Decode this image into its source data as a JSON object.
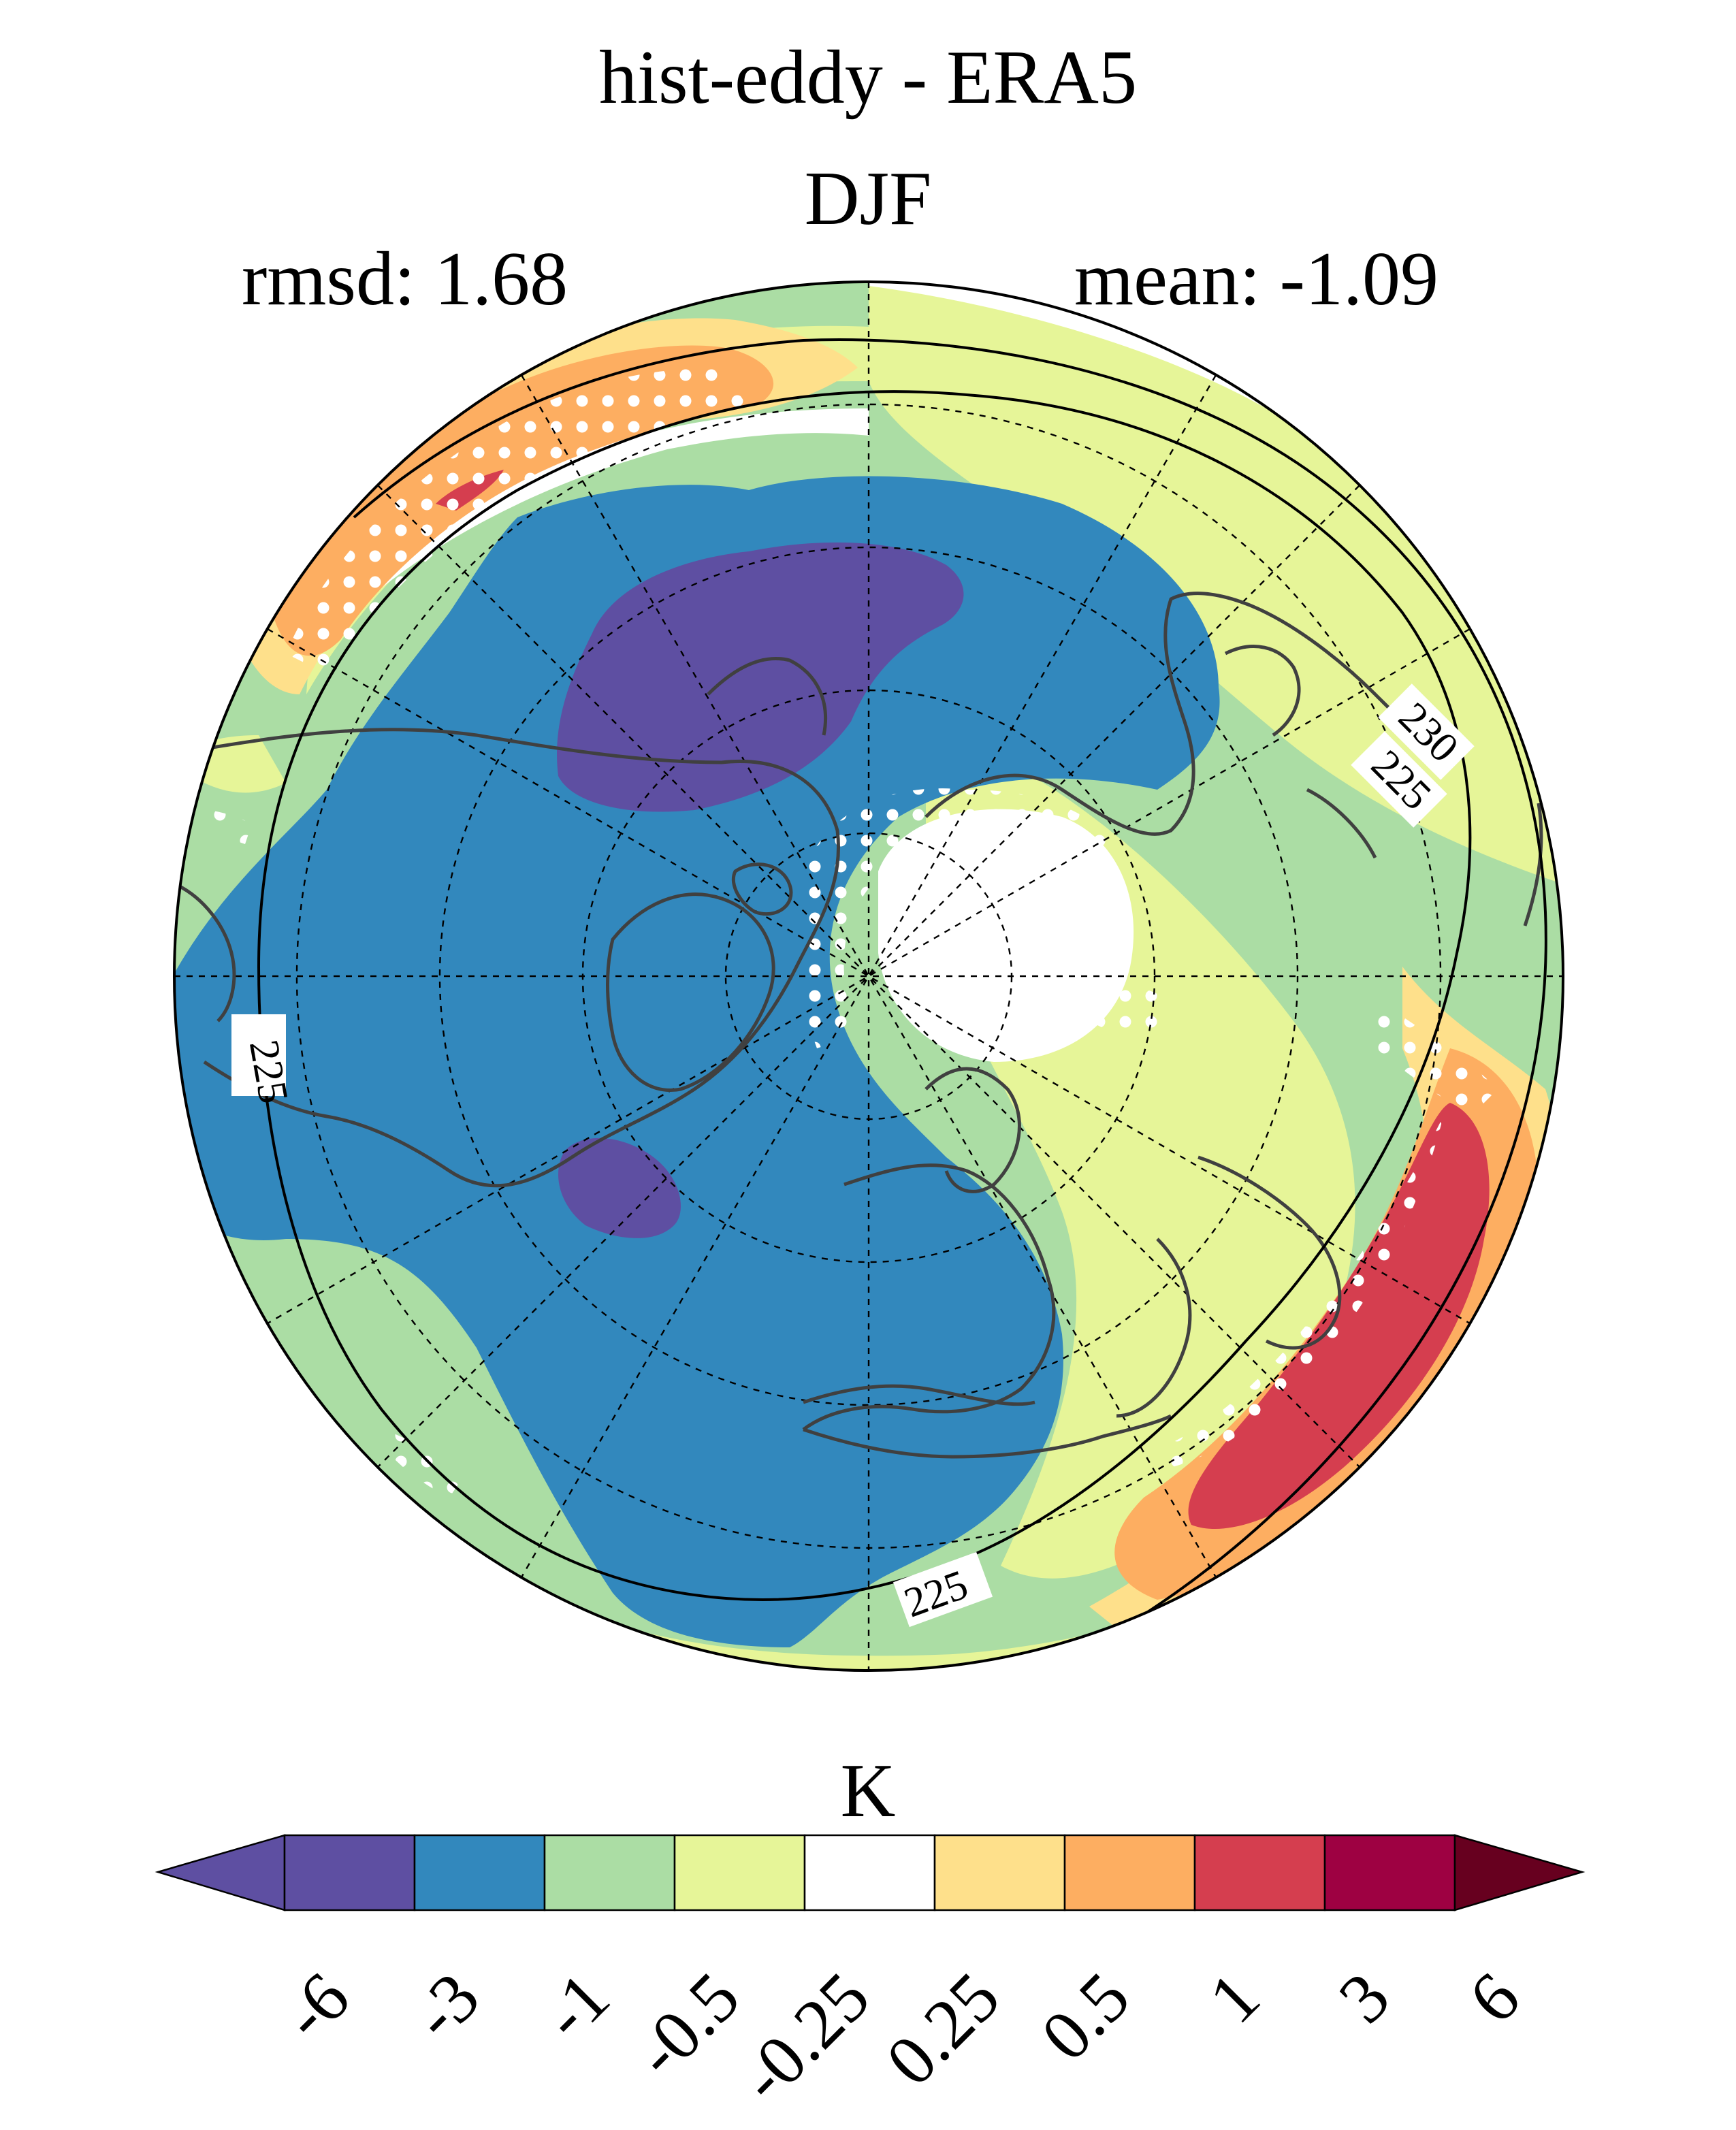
{
  "title": "hist-eddy - ERA5",
  "season": "DJF",
  "stats": {
    "rmsd": "rmsd: 1.68",
    "mean": "mean: -1.09"
  },
  "contour_labels": [
    "230",
    "225",
    "225",
    "225"
  ],
  "colorbar": {
    "unit": "K",
    "ticks": [
      "-6",
      "-3",
      "-1",
      "-0.5",
      "-0.25",
      "0.25",
      "0.5",
      "1",
      "3",
      "6"
    ],
    "colors": [
      "#5e4fa2",
      "#5e4fa2",
      "#3288bd",
      "#abdda4",
      "#e6f598",
      "#ffffff",
      "#fee08b",
      "#fdae61",
      "#d53e4f",
      "#9e0142",
      "#67001f"
    ]
  },
  "map": {
    "projection": "north polar stereographic",
    "variable": "temperature difference (hist-eddy minus ERA5)",
    "stippling": "white dots mark significant differences",
    "palette": {
      "strong-negative": "#5e4fa2",
      "negative": "#3288bd",
      "weak-negative": "#abdda4",
      "slight-negative": "#e6f598",
      "neutral": "#ffffff",
      "slight-positive": "#fee08b",
      "weak-positive": "#fdae61",
      "positive": "#d53e4f"
    }
  }
}
